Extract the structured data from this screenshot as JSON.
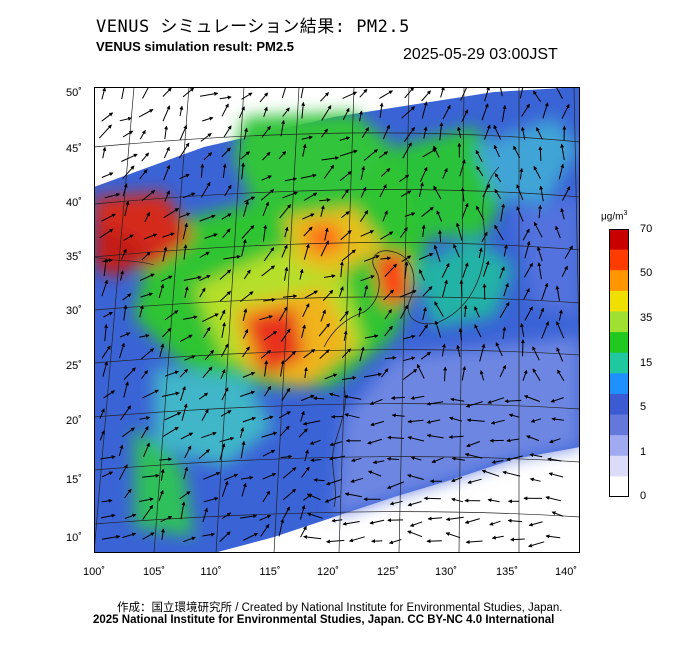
{
  "title_jp": "VENUS シミュレーション結果: PM2.5",
  "title_en": "VENUS simulation result: PM2.5",
  "timestamp": "2025-05-29 03:00JST",
  "lat_labels": [
    "50˚",
    "45˚",
    "40˚",
    "35˚",
    "30˚",
    "25˚",
    "20˚",
    "15˚",
    "10˚"
  ],
  "lon_labels": [
    "100˚",
    "105˚",
    "110˚",
    "115˚",
    "120˚",
    "125˚",
    "130˚",
    "135˚",
    "140˚"
  ],
  "colorbar": {
    "unit": "μg/m",
    "unit_sup": "3",
    "ticks": [
      "70",
      "50",
      "35",
      "15",
      "5",
      "1",
      "0"
    ],
    "colors": [
      "#c80000",
      "#ff3c00",
      "#ff9600",
      "#f0e000",
      "#a0e030",
      "#20c820",
      "#20c8a0",
      "#1e90ff",
      "#3c5ad2",
      "#6478dc",
      "#a0aaf0",
      "#dcdcfa",
      "#ffffff"
    ]
  },
  "credit_line1": "作成：国立環境研究所 / Created by National Institute for Environmental Studies, Japan.",
  "credit_line2": "2025 National Institute for Environmental Studies, Japan. CC BY-NC 4.0 International"
}
